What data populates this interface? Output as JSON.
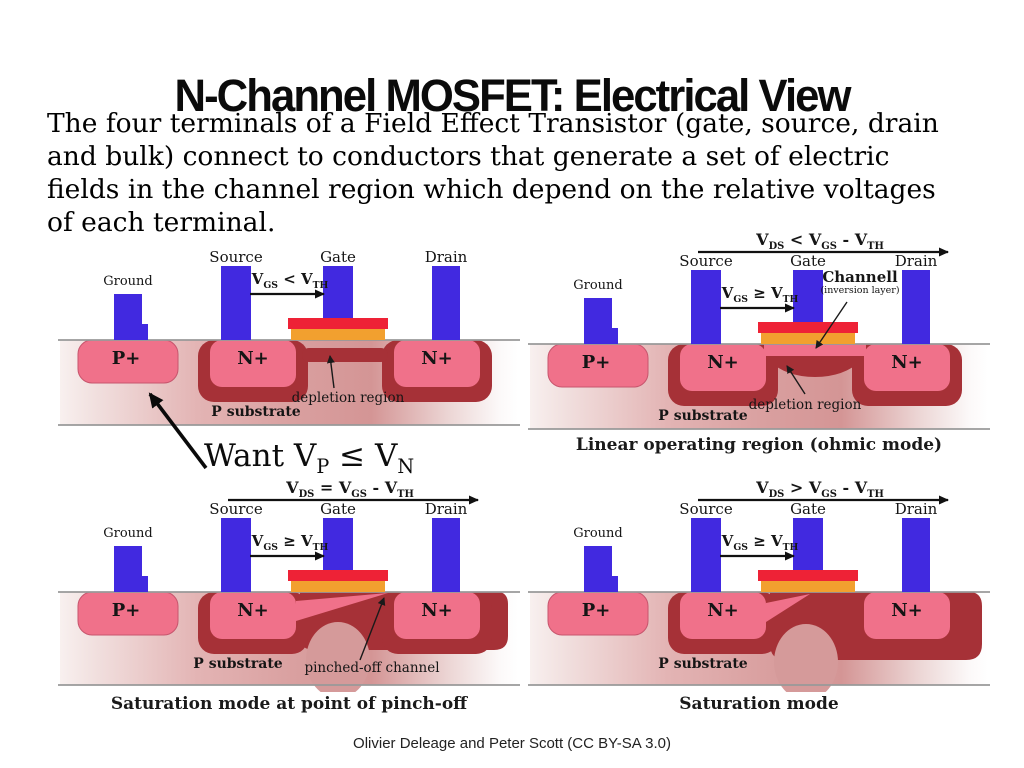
{
  "colors": {
    "c-blue": "#4129e0",
    "c-red": "#ee2236",
    "c-orange": "#f2a02f",
    "c-pink": "#f0718a",
    "c-maroon": "#a63137",
    "c-dome": "#d59a9a"
  },
  "slide": {
    "title": "N-Channel MOSFET: Electrical View",
    "body_lines": [
      "The four terminals of a Field Effect Transistor (gate, source, drain",
      "and bulk) connect to conductors that generate a set of electric",
      "fields in the channel region which depend on the relative voltages",
      "of each terminal."
    ],
    "want_formula": [
      {
        "t": "Want V",
        "s": "P"
      },
      {
        "t": " ≤ "
      },
      {
        "t": "V",
        "s": "N"
      }
    ],
    "credit": "Olivier Deleage and Peter Scott (CC BY-SA 3.0)"
  },
  "panels": [
    {
      "name": "cutoff",
      "labels": {
        "ground": "Ground",
        "source": "Source",
        "gate": "Gate",
        "drain": "Drain",
        "p_plus": "P+",
        "n_source": "N+",
        "n_drain": "N+",
        "substrate": "P substrate",
        "depletion": "depletion region"
      },
      "gs_formula": [
        {
          "t": "V",
          "s": "GS"
        },
        {
          "t": " < "
        },
        {
          "t": "V",
          "s": "TH"
        }
      ],
      "caption": ""
    },
    {
      "name": "linear",
      "labels": {
        "ground": "Ground",
        "source": "Source",
        "gate": "Gate",
        "drain": "Drain",
        "p_plus": "P+",
        "n_source": "N+",
        "n_drain": "N+",
        "substrate": "P substrate",
        "depletion": "depletion region",
        "channel": "Channell",
        "inversion": "(inversion layer)"
      },
      "top_formula": [
        {
          "t": "V",
          "s": "DS"
        },
        {
          "t": " < "
        },
        {
          "t": "V",
          "s": "GS"
        },
        {
          "t": " - "
        },
        {
          "t": "V",
          "s": "TH"
        }
      ],
      "gs_formula": [
        {
          "t": "V",
          "s": "GS"
        },
        {
          "t": " ≥ "
        },
        {
          "t": "V",
          "s": "TH"
        }
      ],
      "caption": "Linear operating region (ohmic mode)"
    },
    {
      "name": "pinchoff",
      "labels": {
        "ground": "Ground",
        "source": "Source",
        "gate": "Gate",
        "drain": "Drain",
        "p_plus": "P+",
        "n_source": "N+",
        "n_drain": "N+",
        "substrate": "P substrate",
        "pinched": "pinched-off channel"
      },
      "top_formula": [
        {
          "t": "V",
          "s": "DS"
        },
        {
          "t": " = "
        },
        {
          "t": "V",
          "s": "GS"
        },
        {
          "t": " - "
        },
        {
          "t": "V",
          "s": "TH"
        }
      ],
      "gs_formula": [
        {
          "t": "V",
          "s": "GS"
        },
        {
          "t": " ≥ "
        },
        {
          "t": "V",
          "s": "TH"
        }
      ],
      "caption": "Saturation mode at point of pinch-off"
    },
    {
      "name": "saturation",
      "labels": {
        "ground": "Ground",
        "source": "Source",
        "gate": "Gate",
        "drain": "Drain",
        "p_plus": "P+",
        "n_source": "N+",
        "n_drain": "N+",
        "substrate": "P substrate"
      },
      "top_formula": [
        {
          "t": "V",
          "s": "DS"
        },
        {
          "t": " > "
        },
        {
          "t": "V",
          "s": "GS"
        },
        {
          "t": " - "
        },
        {
          "t": "V",
          "s": "TH"
        }
      ],
      "gs_formula": [
        {
          "t": "V",
          "s": "GS"
        },
        {
          "t": " ≥ "
        },
        {
          "t": "V",
          "s": "TH"
        }
      ],
      "caption": "Saturation mode"
    }
  ]
}
